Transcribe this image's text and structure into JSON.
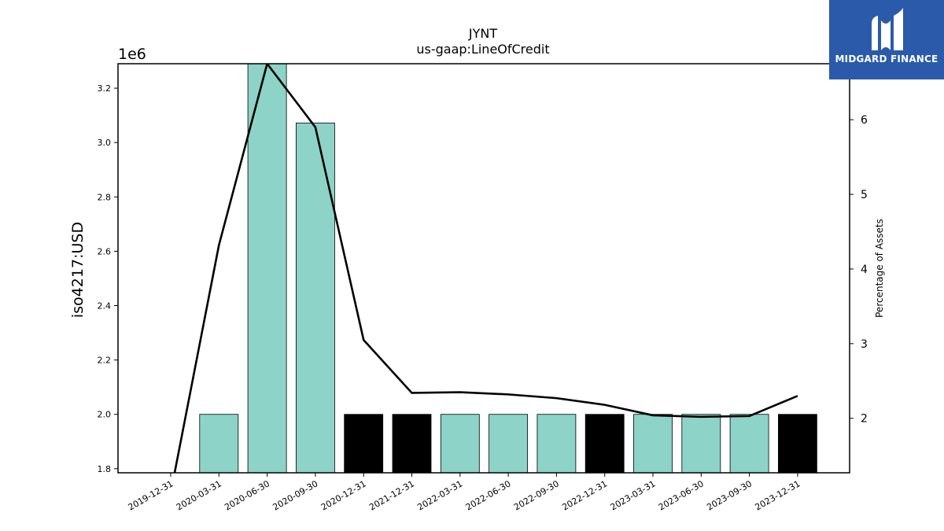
{
  "chart_data": {
    "type": "bar",
    "title": "JYNT",
    "subtitle": "us-gaap:LineOfCredit",
    "ylabel": "iso4217:USD",
    "y_offset_label": "1e6",
    "y2label": "Percentage of Assets",
    "categories": [
      "2019-12-31",
      "2020-03-31",
      "2020-06-30",
      "2020-09-30",
      "2020-12-31",
      "2021-12-31",
      "2022-03-31",
      "2022-06-30",
      "2022-09-30",
      "2022-12-31",
      "2023-03-31",
      "2023-06-30",
      "2023-09-30",
      "2023-12-31"
    ],
    "values": [
      null,
      2000000,
      3290000,
      3072000,
      2000000,
      2000000,
      2000000,
      2000000,
      2000000,
      2000000,
      2000000,
      2000000,
      2000000,
      2000000
    ],
    "bar_colors": [
      "#8dd3c7",
      "#8dd3c7",
      "#8dd3c7",
      "#8dd3c7",
      "#000000",
      "#000000",
      "#8dd3c7",
      "#8dd3c7",
      "#8dd3c7",
      "#000000",
      "#8dd3c7",
      "#8dd3c7",
      "#8dd3c7",
      "#000000"
    ],
    "ylim": [
      1.785,
      3.29
    ],
    "yticks": [
      "1.8",
      "2.0",
      "2.2",
      "2.4",
      "2.6",
      "2.8",
      "3.0",
      "3.2"
    ],
    "ytick_values": [
      1.8,
      2.0,
      2.2,
      2.4,
      2.6,
      2.8,
      3.0,
      3.2
    ],
    "line_series": {
      "values": [
        1.0,
        4.32,
        6.75,
        5.9,
        3.05,
        2.34,
        2.35,
        2.32,
        2.27,
        2.18,
        2.04,
        2.02,
        2.03,
        2.3
      ]
    },
    "y2lim": [
      1.27,
      6.75
    ],
    "y2ticks": [
      "2",
      "3",
      "4",
      "5",
      "6"
    ],
    "y2tick_values": [
      2,
      3,
      4,
      5,
      6
    ],
    "grid": false
  },
  "logo": {
    "text": "MIDGARD FINANCE"
  }
}
